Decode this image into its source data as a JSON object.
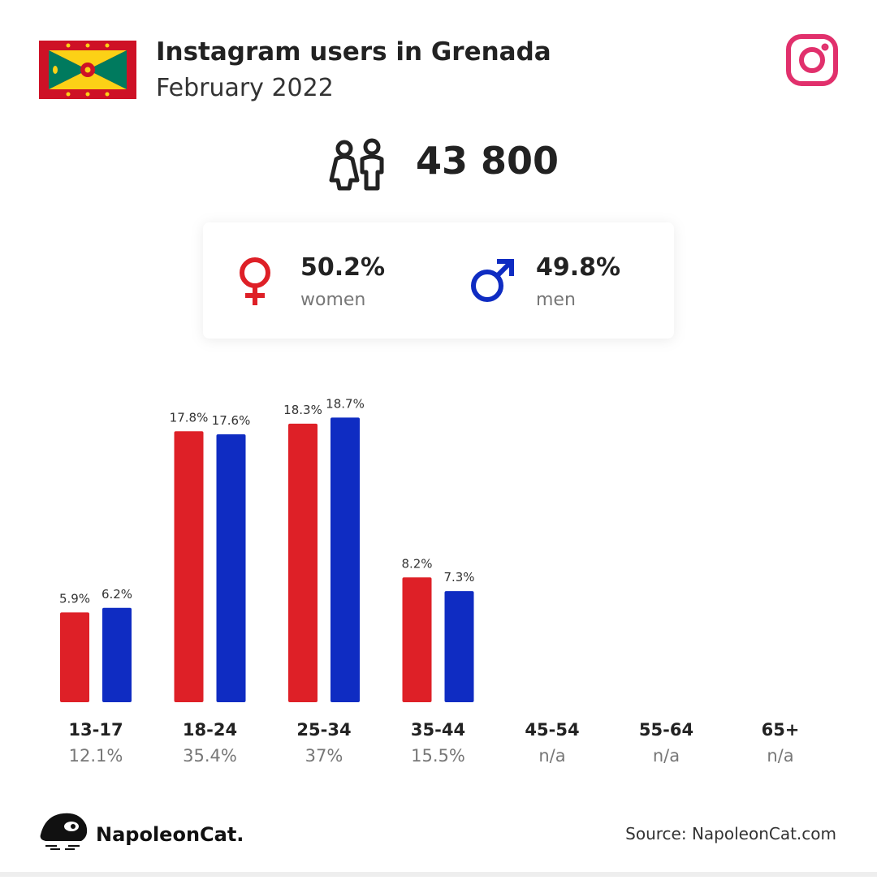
{
  "header": {
    "title": "Instagram users in Grenada",
    "subtitle": "February 2022"
  },
  "total": "43 800",
  "gender": {
    "women": {
      "share": "50.2%",
      "label": "women"
    },
    "men": {
      "share": "49.8%",
      "label": "men"
    }
  },
  "chart_data": {
    "type": "bar",
    "categories": [
      "13-17",
      "18-24",
      "25-34",
      "35-44",
      "45-54",
      "55-64",
      "65+"
    ],
    "category_totals": [
      "12.1%",
      "35.4%",
      "37%",
      "15.5%",
      "n/a",
      "n/a",
      "n/a"
    ],
    "series": [
      {
        "name": "women",
        "color": "#de2027",
        "values": [
          5.9,
          17.8,
          18.3,
          8.2,
          null,
          null,
          null
        ],
        "value_labels": [
          "5.9%",
          "17.8%",
          "18.3%",
          "8.2%",
          null,
          null,
          null
        ]
      },
      {
        "name": "men",
        "color": "#0f2cc2",
        "values": [
          6.2,
          17.6,
          18.7,
          7.3,
          null,
          null,
          null
        ],
        "value_labels": [
          "6.2%",
          "17.6%",
          "18.7%",
          "7.3%",
          null,
          null,
          null
        ]
      }
    ],
    "ylim": [
      0,
      20
    ]
  },
  "footer": {
    "brand": "NapoleonCat.",
    "source": "Source: NapoleonCat.com"
  }
}
